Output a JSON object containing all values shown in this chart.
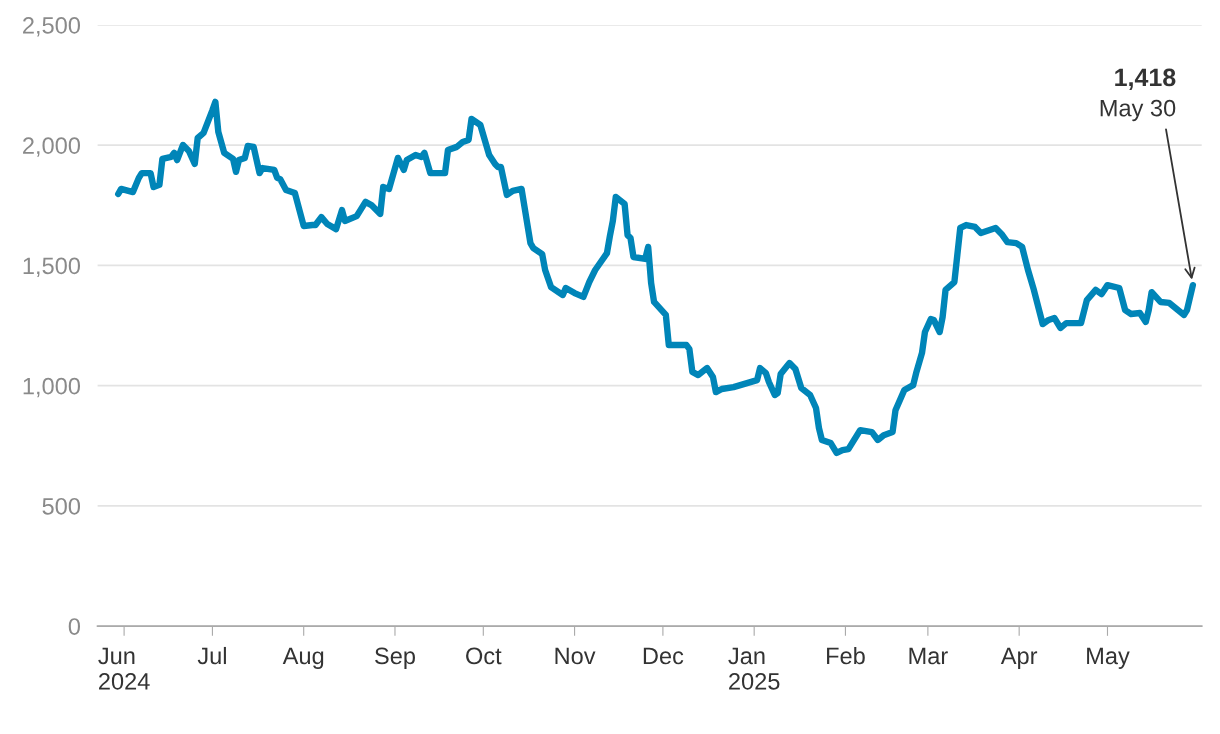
{
  "chart_data": {
    "type": "line",
    "x": [
      "2024-05-30",
      "2024-05-31",
      "2024-06-04",
      "2024-06-06",
      "2024-06-07",
      "2024-06-10",
      "2024-06-11",
      "2024-06-13",
      "2024-06-14",
      "2024-06-17",
      "2024-06-18",
      "2024-06-19",
      "2024-06-21",
      "2024-06-23",
      "2024-06-25",
      "2024-06-26",
      "2024-06-28",
      "2024-07-01",
      "2024-07-02",
      "2024-07-03",
      "2024-07-05",
      "2024-07-08",
      "2024-07-09",
      "2024-07-10",
      "2024-07-12",
      "2024-07-13",
      "2024-07-15",
      "2024-07-17",
      "2024-07-18",
      "2024-07-22",
      "2024-07-23",
      "2024-07-24",
      "2024-07-26",
      "2024-07-29",
      "2024-08-01",
      "2024-08-04",
      "2024-08-05",
      "2024-08-07",
      "2024-08-09",
      "2024-08-12",
      "2024-08-14",
      "2024-08-15",
      "2024-08-19",
      "2024-08-22",
      "2024-08-24",
      "2024-08-27",
      "2024-08-28",
      "2024-08-30",
      "2024-09-02",
      "2024-09-04",
      "2024-09-05",
      "2024-09-08",
      "2024-09-10",
      "2024-09-11",
      "2024-09-13",
      "2024-09-17",
      "2024-09-18",
      "2024-09-19",
      "2024-09-22",
      "2024-09-24",
      "2024-09-26",
      "2024-09-27",
      "2024-09-30",
      "2024-10-03",
      "2024-10-05",
      "2024-10-06",
      "2024-10-07",
      "2024-10-09",
      "2024-10-11",
      "2024-10-14",
      "2024-10-17",
      "2024-10-18",
      "2024-10-21",
      "2024-10-22",
      "2024-10-24",
      "2024-10-28",
      "2024-10-29",
      "2024-11-01",
      "2024-11-04",
      "2024-11-06",
      "2024-11-08",
      "2024-11-12",
      "2024-11-13",
      "2024-11-14",
      "2024-11-15",
      "2024-11-18",
      "2024-11-19",
      "2024-11-20",
      "2024-11-21",
      "2024-11-25",
      "2024-11-26",
      "2024-11-27",
      "2024-11-28",
      "2024-12-02",
      "2024-12-03",
      "2024-12-05",
      "2024-12-09",
      "2024-12-10",
      "2024-12-11",
      "2024-12-13",
      "2024-12-16",
      "2024-12-18",
      "2024-12-19",
      "2024-12-21",
      "2024-12-25",
      "2025-01-02",
      "2025-01-03",
      "2025-01-05",
      "2025-01-06",
      "2025-01-08",
      "2025-01-09",
      "2025-01-10",
      "2025-01-13",
      "2025-01-15",
      "2025-01-17",
      "2025-01-20",
      "2025-01-22",
      "2025-01-23",
      "2025-01-24",
      "2025-01-27",
      "2025-01-29",
      "2025-01-31",
      "2025-02-02",
      "2025-02-06",
      "2025-02-10",
      "2025-02-12",
      "2025-02-14",
      "2025-02-17",
      "2025-02-18",
      "2025-02-21",
      "2025-02-24",
      "2025-02-25",
      "2025-02-27",
      "2025-02-28",
      "2025-03-02",
      "2025-03-03",
      "2025-03-05",
      "2025-03-06",
      "2025-03-07",
      "2025-03-10",
      "2025-03-12",
      "2025-03-14",
      "2025-03-17",
      "2025-03-19",
      "2025-03-24",
      "2025-03-26",
      "2025-03-28",
      "2025-03-31",
      "2025-04-02",
      "2025-04-04",
      "2025-04-06",
      "2025-04-09",
      "2025-04-11",
      "2025-04-13",
      "2025-04-15",
      "2025-04-17",
      "2025-04-22",
      "2025-04-24",
      "2025-04-27",
      "2025-04-29",
      "2025-05-01",
      "2025-05-05",
      "2025-05-07",
      "2025-05-09",
      "2025-05-12",
      "2025-05-14",
      "2025-05-15",
      "2025-05-16",
      "2025-05-19",
      "2025-05-22",
      "2025-05-27",
      "2025-05-28",
      "2025-05-30"
    ],
    "series": [
      {
        "color": "#0085b8",
        "values": [
          1797,
          1818,
          1805,
          1864,
          1884,
          1884,
          1826,
          1835,
          1943,
          1951,
          1968,
          1938,
          2001,
          1976,
          1922,
          2030,
          2051,
          2146,
          2180,
          2055,
          1968,
          1943,
          1889,
          1938,
          1947,
          1997,
          1993,
          1884,
          1905,
          1897,
          1864,
          1859,
          1814,
          1801,
          1664,
          1668,
          1668,
          1701,
          1672,
          1651,
          1730,
          1685,
          1705,
          1764,
          1751,
          1714,
          1826,
          1818,
          1947,
          1897,
          1938,
          1959,
          1951,
          1968,
          1884,
          1884,
          1884,
          1980,
          1993,
          2013,
          2022,
          2109,
          2084,
          1959,
          1922,
          1909,
          1909,
          1793,
          1810,
          1818,
          1593,
          1572,
          1547,
          1481,
          1410,
          1377,
          1406,
          1385,
          1369,
          1431,
          1481,
          1551,
          1622,
          1685,
          1785,
          1755,
          1626,
          1614,
          1535,
          1527,
          1577,
          1427,
          1348,
          1294,
          1169,
          1169,
          1169,
          1152,
          1057,
          1044,
          1073,
          1036,
          973,
          986,
          994,
          1023,
          1073,
          1052,
          1015,
          961,
          969,
          1048,
          1094,
          1069,
          990,
          961,
          907,
          824,
          774,
          761,
          720,
          732,
          736,
          815,
          807,
          774,
          794,
          807,
          898,
          982,
          1002,
          1052,
          1136,
          1223,
          1277,
          1273,
          1223,
          1285,
          1398,
          1431,
          1656,
          1668,
          1660,
          1635,
          1656,
          1631,
          1597,
          1593,
          1577,
          1481,
          1398,
          1256,
          1273,
          1281,
          1240,
          1260,
          1260,
          1356,
          1398,
          1381,
          1418,
          1406,
          1314,
          1298,
          1302,
          1265,
          1314,
          1389,
          1348,
          1344,
          1294,
          1314,
          1418
        ]
      }
    ],
    "xlim": [
      "2024-05-23",
      "2025-06-02"
    ],
    "xticks": [
      {
        "value": "2024-06-01",
        "label": "Jun\n2024"
      },
      {
        "value": "2024-07-01",
        "label": "Jul"
      },
      {
        "value": "2024-08-01",
        "label": "Aug"
      },
      {
        "value": "2024-09-01",
        "label": "Sep"
      },
      {
        "value": "2024-10-01",
        "label": "Oct"
      },
      {
        "value": "2024-11-01",
        "label": "Nov"
      },
      {
        "value": "2024-12-01",
        "label": "Dec"
      },
      {
        "value": "2025-01-01",
        "label": "Jan\n2025"
      },
      {
        "value": "2025-02-01",
        "label": "Feb"
      },
      {
        "value": "2025-03-01",
        "label": "Mar"
      },
      {
        "value": "2025-04-01",
        "label": "Apr"
      },
      {
        "value": "2025-05-01",
        "label": "May"
      }
    ],
    "ylim": [
      0,
      2500
    ],
    "yticks": [
      {
        "value": 0,
        "label": "0"
      },
      {
        "value": 500,
        "label": "500"
      },
      {
        "value": 1000,
        "label": "1,000"
      },
      {
        "value": 1500,
        "label": "1,500"
      },
      {
        "value": 2000,
        "label": "2,000"
      },
      {
        "value": 2500,
        "label": "2,500"
      }
    ],
    "grid": "y",
    "legend": false,
    "marker": "none",
    "line_style": "solid",
    "annotations": [
      {
        "text": "1,418\nMay 30",
        "x": "2025-05-30",
        "y": 1418
      }
    ]
  }
}
